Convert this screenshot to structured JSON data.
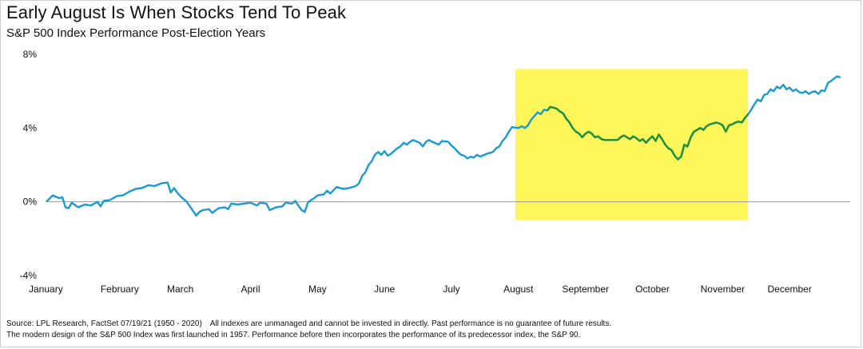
{
  "title": "Early August Is When Stocks Tend To Peak",
  "subtitle": "S&P 500 Index Performance Post-Election Years",
  "footer": {
    "source": "Source: LPL Research, FactSet 07/19/21 (1950 - 2020)",
    "disclaimer": "All indexes are unmanaged and cannot be invested in directly. Past performance is no guarantee of future results.",
    "note": "The modern design of the S&P 500 Index was first launched in 1957. Performance before then incorporates the performance of its  predecessor index, the S&P 90."
  },
  "colors": {
    "line": "#1a9bd0",
    "highlight_line": "#1f8f3a",
    "highlight_fill": "#fff65a",
    "zero_line": "#9a9a9a"
  },
  "chart_data": {
    "type": "line",
    "title": "Early August Is When Stocks Tend To Peak",
    "subtitle": "S&P 500 Index Performance Post-Election Years",
    "xlabel": "",
    "ylabel": "",
    "ylim": [
      -4,
      8
    ],
    "yticks": [
      -4,
      0,
      4,
      8
    ],
    "ytick_labels": [
      "-4%",
      "0%",
      "4%",
      "8%"
    ],
    "x_tick_labels": [
      "January",
      "February",
      "March",
      "April",
      "May",
      "June",
      "July",
      "August",
      "September",
      "October",
      "November",
      "December"
    ],
    "x_unit": "trading day of year",
    "xlim": [
      0,
      252
    ],
    "highlight": {
      "start_day": 147,
      "end_day": 220,
      "label_range": "August to mid-November",
      "ymin": -1,
      "ymax": 7.2
    },
    "grid": false,
    "legend": "none",
    "series": [
      {
        "points": [
          [
            0,
            0.0
          ],
          [
            2,
            0.35
          ],
          [
            4,
            0.2
          ],
          [
            5,
            0.25
          ],
          [
            6,
            -0.3
          ],
          [
            7,
            -0.35
          ],
          [
            8,
            -0.05
          ],
          [
            10,
            -0.3
          ],
          [
            12,
            -0.15
          ],
          [
            14,
            -0.2
          ],
          [
            16,
            0.0
          ],
          [
            17,
            -0.25
          ],
          [
            18,
            0.05
          ],
          [
            20,
            0.1
          ],
          [
            22,
            0.3
          ],
          [
            24,
            0.35
          ],
          [
            26,
            0.55
          ],
          [
            28,
            0.7
          ],
          [
            30,
            0.75
          ],
          [
            32,
            0.9
          ],
          [
            34,
            0.85
          ],
          [
            36,
            1.0
          ],
          [
            38,
            1.05
          ],
          [
            39,
            0.5
          ],
          [
            40,
            0.75
          ],
          [
            41,
            0.5
          ],
          [
            42,
            0.3
          ],
          [
            44,
            0.0
          ],
          [
            46,
            -0.5
          ],
          [
            47,
            -0.75
          ],
          [
            48,
            -0.55
          ],
          [
            49,
            -0.45
          ],
          [
            51,
            -0.4
          ],
          [
            52,
            -0.6
          ],
          [
            54,
            -0.35
          ],
          [
            56,
            -0.3
          ],
          [
            57,
            -0.4
          ],
          [
            58,
            -0.1
          ],
          [
            60,
            -0.15
          ],
          [
            62,
            -0.1
          ],
          [
            64,
            -0.05
          ],
          [
            66,
            -0.2
          ],
          [
            67,
            -0.05
          ],
          [
            69,
            -0.1
          ],
          [
            70,
            -0.45
          ],
          [
            72,
            -0.3
          ],
          [
            74,
            -0.25
          ],
          [
            75,
            -0.05
          ],
          [
            77,
            -0.1
          ],
          [
            78,
            0.05
          ],
          [
            79,
            -0.2
          ],
          [
            80,
            -0.45
          ],
          [
            81,
            -0.55
          ],
          [
            82,
            -0.05
          ],
          [
            83,
            0.1
          ],
          [
            84,
            0.2
          ],
          [
            85,
            0.35
          ],
          [
            87,
            0.4
          ],
          [
            88,
            0.6
          ],
          [
            89,
            0.45
          ],
          [
            91,
            0.8
          ],
          [
            93,
            0.7
          ],
          [
            95,
            0.75
          ],
          [
            97,
            0.85
          ],
          [
            98,
            1.0
          ],
          [
            99,
            1.4
          ],
          [
            100,
            1.6
          ],
          [
            101,
            2.0
          ],
          [
            102,
            2.2
          ],
          [
            103,
            2.55
          ],
          [
            104,
            2.7
          ],
          [
            105,
            2.55
          ],
          [
            106,
            2.75
          ],
          [
            107,
            2.5
          ],
          [
            108,
            2.6
          ],
          [
            110,
            2.9
          ],
          [
            111,
            3.0
          ],
          [
            112,
            3.2
          ],
          [
            113,
            3.1
          ],
          [
            114,
            3.25
          ],
          [
            115,
            3.35
          ],
          [
            117,
            3.2
          ],
          [
            118,
            3.0
          ],
          [
            119,
            3.25
          ],
          [
            120,
            3.35
          ],
          [
            121,
            3.25
          ],
          [
            123,
            3.1
          ],
          [
            124,
            3.3
          ],
          [
            126,
            3.25
          ],
          [
            127,
            3.05
          ],
          [
            128,
            2.9
          ],
          [
            129,
            2.7
          ],
          [
            130,
            2.55
          ],
          [
            131,
            2.5
          ],
          [
            132,
            2.35
          ],
          [
            133,
            2.45
          ],
          [
            134,
            2.4
          ],
          [
            135,
            2.55
          ],
          [
            136,
            2.45
          ],
          [
            138,
            2.6
          ],
          [
            140,
            2.7
          ],
          [
            141,
            2.9
          ],
          [
            142,
            3.0
          ],
          [
            143,
            3.3
          ],
          [
            144,
            3.5
          ],
          [
            145,
            3.8
          ],
          [
            146,
            4.05
          ],
          [
            148,
            4.0
          ],
          [
            149,
            4.1
          ],
          [
            150,
            4.0
          ],
          [
            151,
            4.15
          ],
          [
            152,
            4.45
          ],
          [
            153,
            4.65
          ],
          [
            154,
            4.85
          ],
          [
            155,
            4.75
          ],
          [
            156,
            5.0
          ],
          [
            157,
            4.95
          ],
          [
            158,
            5.15
          ],
          [
            159,
            5.1
          ],
          [
            160,
            5.05
          ],
          [
            161,
            4.9
          ],
          [
            162,
            4.8
          ],
          [
            163,
            4.5
          ],
          [
            164,
            4.3
          ],
          [
            165,
            4.0
          ],
          [
            166,
            3.8
          ],
          [
            167,
            3.7
          ],
          [
            168,
            3.5
          ],
          [
            169,
            3.7
          ],
          [
            170,
            3.8
          ],
          [
            171,
            3.7
          ],
          [
            172,
            3.5
          ],
          [
            173,
            3.55
          ],
          [
            174,
            3.4
          ],
          [
            175,
            3.35
          ],
          [
            177,
            3.35
          ],
          [
            179,
            3.35
          ],
          [
            180,
            3.5
          ],
          [
            181,
            3.6
          ],
          [
            182,
            3.5
          ],
          [
            183,
            3.4
          ],
          [
            184,
            3.55
          ],
          [
            185,
            3.45
          ],
          [
            186,
            3.3
          ],
          [
            187,
            3.4
          ],
          [
            188,
            3.2
          ],
          [
            189,
            3.4
          ],
          [
            190,
            3.55
          ],
          [
            191,
            3.3
          ],
          [
            192,
            3.65
          ],
          [
            193,
            3.4
          ],
          [
            194,
            3.1
          ],
          [
            195,
            2.9
          ],
          [
            196,
            2.8
          ],
          [
            197,
            2.5
          ],
          [
            198,
            2.3
          ],
          [
            199,
            2.45
          ],
          [
            200,
            3.1
          ],
          [
            201,
            3.0
          ],
          [
            202,
            3.5
          ],
          [
            203,
            3.8
          ],
          [
            204,
            3.9
          ],
          [
            205,
            4.0
          ],
          [
            206,
            3.9
          ],
          [
            207,
            4.1
          ],
          [
            208,
            4.2
          ],
          [
            209,
            4.25
          ],
          [
            210,
            4.3
          ],
          [
            211,
            4.25
          ],
          [
            212,
            4.15
          ],
          [
            213,
            3.8
          ],
          [
            214,
            4.15
          ],
          [
            215,
            4.2
          ],
          [
            216,
            4.3
          ],
          [
            217,
            4.35
          ],
          [
            218,
            4.3
          ],
          [
            219,
            4.55
          ],
          [
            220,
            4.75
          ],
          [
            221,
            5.0
          ],
          [
            222,
            5.3
          ],
          [
            223,
            5.55
          ],
          [
            224,
            5.45
          ],
          [
            225,
            5.8
          ],
          [
            226,
            5.85
          ],
          [
            227,
            6.1
          ],
          [
            228,
            6.0
          ],
          [
            229,
            6.25
          ],
          [
            230,
            6.15
          ],
          [
            231,
            6.35
          ],
          [
            232,
            6.1
          ],
          [
            233,
            6.2
          ],
          [
            234,
            6.0
          ],
          [
            235,
            6.1
          ],
          [
            236,
            5.95
          ],
          [
            237,
            5.9
          ],
          [
            238,
            6.0
          ],
          [
            239,
            5.85
          ],
          [
            240,
            5.95
          ],
          [
            241,
            6.0
          ],
          [
            242,
            5.85
          ],
          [
            243,
            6.05
          ],
          [
            244,
            6.0
          ],
          [
            245,
            6.45
          ],
          [
            246,
            6.55
          ],
          [
            247,
            6.7
          ],
          [
            248,
            6.8
          ],
          [
            249,
            6.75
          ]
        ]
      }
    ]
  }
}
